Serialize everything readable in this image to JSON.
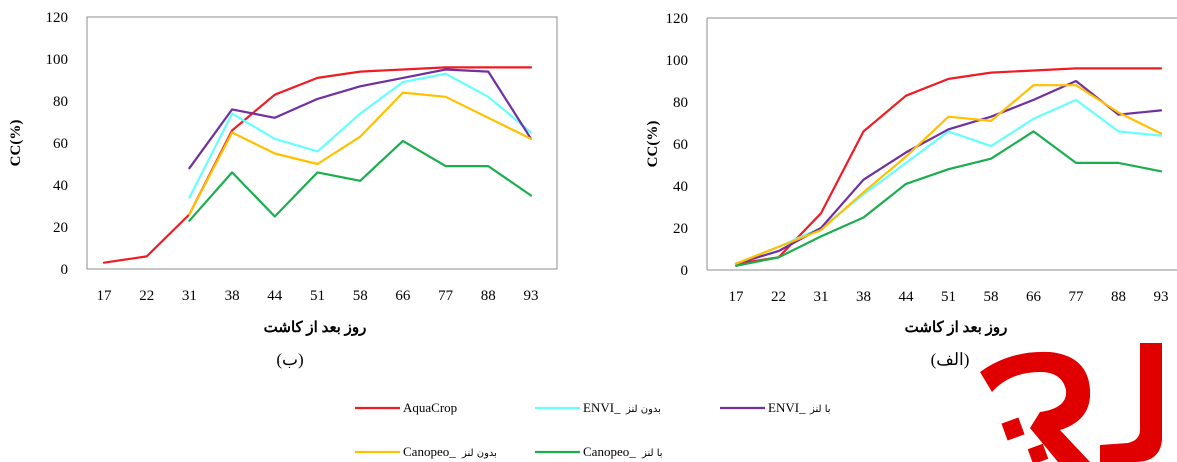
{
  "chart_data": [
    {
      "type": "line",
      "panel_label": "(ب)",
      "x": [
        "17",
        "22",
        "31",
        "38",
        "44",
        "51",
        "58",
        "66",
        "77",
        "88",
        "93"
      ],
      "xlabel": "روز بعد از کاشت",
      "ylabel": "CC(%)",
      "ylim": [
        0,
        120
      ],
      "yticks": [
        "0",
        "20",
        "40",
        "60",
        "80",
        "100",
        "120"
      ],
      "grid": false,
      "series": [
        {
          "name": "AquaCrop",
          "color": "#ee1c25",
          "values": [
            3,
            6,
            26,
            66,
            83,
            91,
            94,
            95,
            96,
            96,
            96
          ]
        },
        {
          "name": "ENVI بدون لنز",
          "color": "#66ffff",
          "values": [
            null,
            null,
            34,
            74,
            62,
            56,
            74,
            89,
            93,
            82,
            65
          ]
        },
        {
          "name": "ENVI با لنز",
          "color": "#7030a0",
          "values": [
            null,
            null,
            48,
            76,
            72,
            81,
            87,
            91,
            95,
            94,
            62
          ]
        },
        {
          "name": "Canopeo بدون لنز",
          "color": "#ffc000",
          "values": [
            null,
            null,
            26,
            65,
            55,
            50,
            63,
            84,
            82,
            72,
            62
          ]
        },
        {
          "name": "Canopeo با لنز",
          "color": "#1aae4d",
          "values": [
            null,
            null,
            23,
            46,
            25,
            46,
            42,
            61,
            49,
            49,
            35
          ]
        }
      ]
    },
    {
      "type": "line",
      "panel_label": "(الف)",
      "x": [
        "17",
        "22",
        "31",
        "38",
        "44",
        "51",
        "58",
        "66",
        "77",
        "88",
        "93"
      ],
      "xlabel": "روز بعد از کاشت",
      "ylabel": "CC(%)",
      "ylim": [
        0,
        120
      ],
      "yticks": [
        "0",
        "20",
        "40",
        "60",
        "80",
        "100",
        "120"
      ],
      "grid": false,
      "series": [
        {
          "name": "AquaCrop",
          "color": "#ee1c25",
          "values": [
            3,
            6,
            27,
            66,
            83,
            91,
            94,
            95,
            96,
            96,
            96
          ]
        },
        {
          "name": "ENVI بدون لنز",
          "color": "#66ffff",
          "values": [
            3,
            11,
            20,
            36,
            51,
            66,
            59,
            72,
            81,
            66,
            64
          ]
        },
        {
          "name": "ENVI با لنز",
          "color": "#7030a0",
          "values": [
            3,
            9,
            20,
            43,
            56,
            67,
            73,
            81,
            90,
            74,
            76
          ]
        },
        {
          "name": "Canopeo بدون لنز",
          "color": "#ffc000",
          "values": [
            3,
            11,
            19,
            37,
            54,
            73,
            71,
            88,
            88,
            75,
            65
          ]
        },
        {
          "name": "Canopeo با لنز",
          "color": "#1aae4d",
          "values": [
            2,
            6,
            16,
            25,
            41,
            48,
            53,
            66,
            51,
            51,
            47
          ]
        }
      ]
    }
  ],
  "legend": {
    "placement": "bottom-center",
    "entries": [
      {
        "color": "#ee1c25",
        "latin": "AquaCrop",
        "persian": ""
      },
      {
        "color": "#66ffff",
        "latin": "ENVI_",
        "persian": "بدون لنز"
      },
      {
        "color": "#7030a0",
        "latin": "ENVI_",
        "persian": "با لنز"
      },
      {
        "color": "#ffc000",
        "latin": "Canopeo_",
        "persian": "بدون لنز"
      },
      {
        "color": "#1aae4d",
        "latin": "Canopeo_",
        "persian": "با لنز"
      }
    ]
  },
  "watermark": {
    "color": "#e00000",
    "text": "نیچر"
  }
}
